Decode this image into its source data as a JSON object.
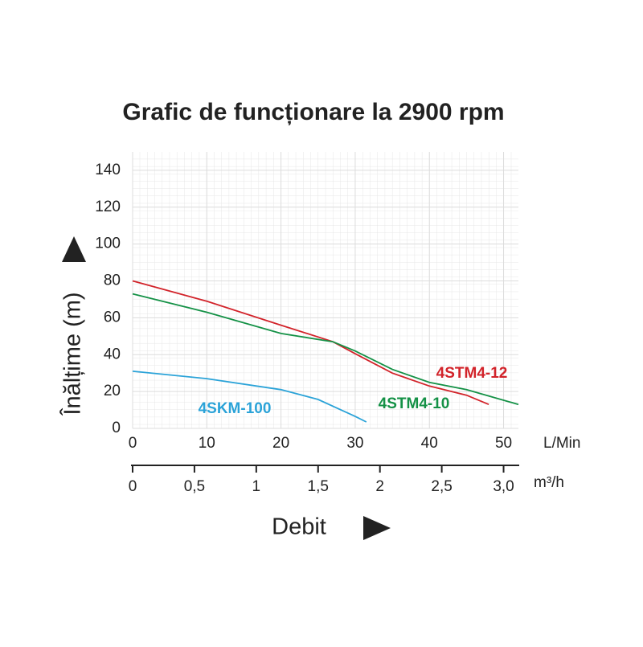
{
  "chart_data": {
    "type": "line",
    "title": "Grafic de funcționare la 2900 rpm",
    "y_label": "Înălțime (m)",
    "x_label": "Debit",
    "x_unit": "L/Min",
    "x2_unit": "m³/h",
    "xlim": [
      0,
      52
    ],
    "xticks": [
      0,
      10,
      20,
      30,
      40,
      50
    ],
    "x2lim": [
      0,
      3.12
    ],
    "x2ticks": [
      0,
      {
        "value": 0.5,
        "label": "0,5"
      },
      1,
      {
        "value": 1.5,
        "label": "1,5"
      },
      2,
      {
        "value": 2.5,
        "label": "2,5"
      },
      {
        "value": 3,
        "label": "3,0"
      }
    ],
    "ylim": [
      0,
      150
    ],
    "yticks": [
      0,
      20,
      40,
      60,
      80,
      100,
      120,
      140
    ],
    "grid": true,
    "series": [
      {
        "name": "4STM4-12",
        "color": "#d2232a",
        "x": [
          0,
          10,
          20,
          27,
          30,
          35,
          40,
          45,
          48
        ],
        "values": [
          80,
          69,
          56,
          47,
          40.5,
          30,
          23,
          18,
          13
        ]
      },
      {
        "name": "4STM4-10",
        "color": "#149146",
        "x": [
          0,
          10,
          20,
          27,
          30,
          35,
          40,
          45,
          52
        ],
        "values": [
          73,
          63,
          51.5,
          47,
          42,
          32,
          25,
          21,
          13
        ]
      },
      {
        "name": "4SKM-100",
        "color": "#2ba3d8",
        "x": [
          0,
          10,
          20,
          25,
          30,
          31.5
        ],
        "values": [
          31,
          27,
          21,
          15.7,
          6.5,
          3.5
        ]
      }
    ]
  }
}
